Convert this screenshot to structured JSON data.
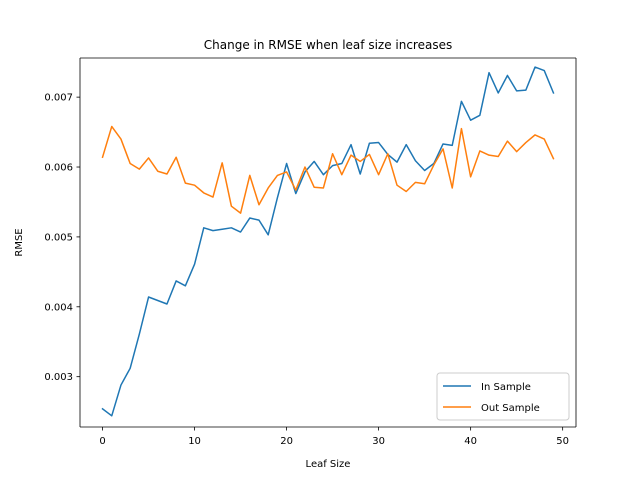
{
  "chart_data": {
    "type": "line",
    "title": "Change in RMSE when leaf size increases",
    "xlabel": "Leaf Size",
    "ylabel": "RMSE",
    "xlim": [
      -2.45,
      51.45
    ],
    "ylim": [
      0.00228,
      0.00756
    ],
    "xticks": [
      0,
      10,
      20,
      30,
      40,
      50
    ],
    "yticks": [
      0.003,
      0.004,
      0.005,
      0.006,
      0.007
    ],
    "ytick_labels": [
      "0.003",
      "0.004",
      "0.005",
      "0.006",
      "0.007"
    ],
    "grid": false,
    "legend_position": "lower right",
    "x": [
      0,
      1,
      2,
      3,
      4,
      5,
      6,
      7,
      8,
      9,
      10,
      11,
      12,
      13,
      14,
      15,
      16,
      17,
      18,
      19,
      20,
      21,
      22,
      23,
      24,
      25,
      26,
      27,
      28,
      29,
      30,
      31,
      32,
      33,
      34,
      35,
      36,
      37,
      38,
      39,
      40,
      41,
      42,
      43,
      44,
      45,
      46,
      47,
      48,
      49
    ],
    "series": [
      {
        "name": "In Sample",
        "color": "#1f77b4",
        "values": [
          0.00254,
          0.00244,
          0.00288,
          0.00312,
          0.00361,
          0.00414,
          0.00409,
          0.00404,
          0.00437,
          0.0043,
          0.00461,
          0.00513,
          0.00509,
          0.00511,
          0.00513,
          0.00507,
          0.00527,
          0.00524,
          0.00503,
          0.00556,
          0.00605,
          0.00562,
          0.00593,
          0.00608,
          0.00589,
          0.00602,
          0.00605,
          0.00632,
          0.0059,
          0.00634,
          0.00635,
          0.00618,
          0.00607,
          0.00632,
          0.00609,
          0.00595,
          0.00605,
          0.00633,
          0.00631,
          0.00694,
          0.00667,
          0.00674,
          0.00735,
          0.00706,
          0.00731,
          0.00709,
          0.0071,
          0.00743,
          0.00738,
          0.00706
        ]
      },
      {
        "name": "Out Sample",
        "color": "#ff7f0e",
        "values": [
          0.00614,
          0.00658,
          0.0064,
          0.00605,
          0.00597,
          0.00613,
          0.00594,
          0.0059,
          0.00614,
          0.00577,
          0.00574,
          0.00563,
          0.00557,
          0.00606,
          0.00544,
          0.00534,
          0.00588,
          0.00546,
          0.0057,
          0.00588,
          0.00593,
          0.00567,
          0.006,
          0.00571,
          0.0057,
          0.00619,
          0.00589,
          0.00617,
          0.00608,
          0.00618,
          0.00589,
          0.00619,
          0.00574,
          0.00565,
          0.00578,
          0.00576,
          0.00603,
          0.00626,
          0.0057,
          0.00655,
          0.00586,
          0.00623,
          0.00617,
          0.00615,
          0.00637,
          0.00622,
          0.00635,
          0.00646,
          0.0064,
          0.00612
        ]
      }
    ]
  }
}
